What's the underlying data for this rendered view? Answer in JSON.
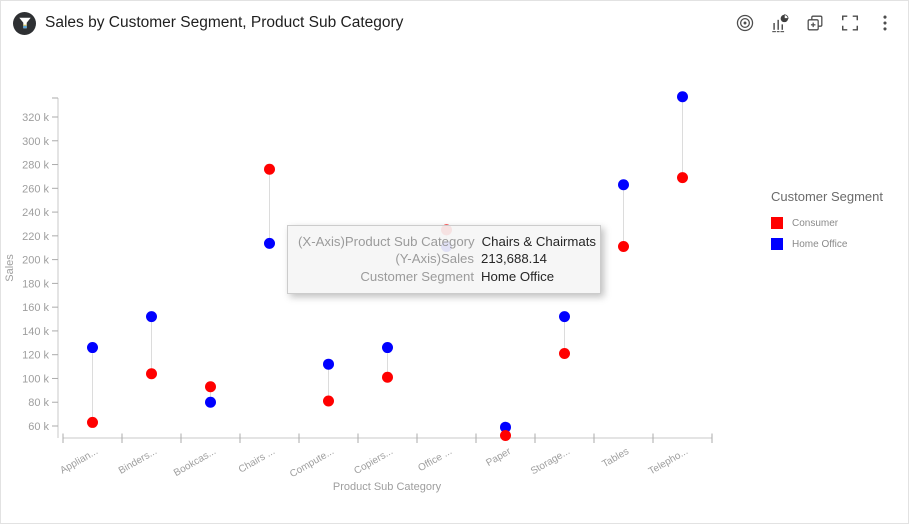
{
  "header": {
    "title": "Sales by Customer Segment, Product Sub Category",
    "logo_icon": "funnel-icon",
    "toolbar_icons": [
      "target",
      "chart-type",
      "duplicate",
      "fullscreen",
      "more-options"
    ]
  },
  "chart_data": {
    "type": "scatter",
    "subtype": "dumbbell-dot-plot",
    "title": "Sales by Customer Segment, Product Sub Category",
    "xlabel": "Product Sub Category",
    "ylabel": "Sales",
    "categories_display": [
      "Applian...",
      "Binders...",
      "Bookcas...",
      "Chairs ...",
      "Compute...",
      "Copiers...",
      "Office ...",
      "Paper",
      "Storage...",
      "Tables",
      "Telepho..."
    ],
    "series": [
      {
        "name": "Consumer",
        "color": "#ff0000",
        "values": [
          63000,
          104000,
          93000,
          276000,
          81000,
          101000,
          225000,
          52000,
          121000,
          211000,
          269000
        ]
      },
      {
        "name": "Home Office",
        "color": "#0000ff",
        "values": [
          126000,
          152000,
          80000,
          213688.14,
          112000,
          126000,
          211000,
          59000,
          152000,
          263000,
          337000
        ]
      }
    ],
    "y_tick_values": [
      60000,
      80000,
      100000,
      120000,
      140000,
      160000,
      180000,
      200000,
      220000,
      240000,
      260000,
      280000,
      300000,
      320000
    ],
    "y_tick_labels": [
      "60 k",
      "80 k",
      "100 k",
      "120 k",
      "140 k",
      "160 k",
      "180 k",
      "200 k",
      "220 k",
      "240 k",
      "260 k",
      "280 k",
      "300 k",
      "320 k"
    ],
    "ylim": [
      49500,
      340000
    ],
    "grid": false,
    "legend_position": "right",
    "connectors": true
  },
  "legend": {
    "title": "Customer Segment",
    "items": [
      {
        "label": "Consumer",
        "color": "#ff0000"
      },
      {
        "label": "Home Office",
        "color": "#0000ff"
      }
    ]
  },
  "tooltip": {
    "rows": [
      {
        "label": "(X-Axis)Product Sub Category",
        "value": "Chairs & Chairmats"
      },
      {
        "label": "(Y-Axis)Sales",
        "value": "213,688.14"
      },
      {
        "label": "Customer Segment",
        "value": "Home Office"
      }
    ]
  }
}
